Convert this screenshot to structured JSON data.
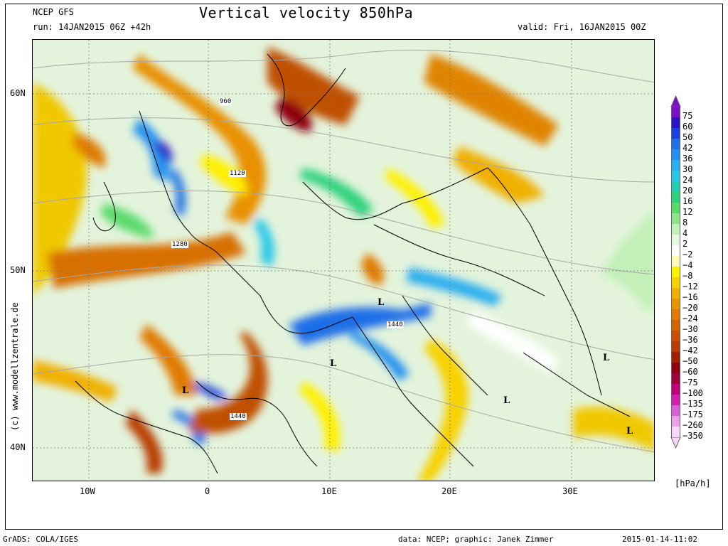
{
  "header": {
    "model": "NCEP GFS",
    "run": "run: 14JAN2015 06Z +42h",
    "title": "Vertical velocity 850hPa",
    "valid": "valid: Fri, 16JAN2015 00Z"
  },
  "axes": {
    "lat_labels": [
      "60N",
      "50N",
      "40N"
    ],
    "lon_labels": [
      "10W",
      "0",
      "10E",
      "20E",
      "30E"
    ]
  },
  "credit": "(c) www.modellzentrale.de",
  "footer": {
    "left": "GrADS: COLA/IGES",
    "center": "data: NCEP; graphic: Janek Zimmer",
    "right": "2015-01-14-11:02"
  },
  "legend": {
    "unit": "[hPa/h]",
    "items": [
      {
        "label": "75",
        "color": "#7a10c8"
      },
      {
        "label": "60",
        "color": "#2a14c8"
      },
      {
        "label": "50",
        "color": "#1c40e0"
      },
      {
        "label": "42",
        "color": "#1e6ee8"
      },
      {
        "label": "36",
        "color": "#2490f0"
      },
      {
        "label": "30",
        "color": "#2aaef0"
      },
      {
        "label": "24",
        "color": "#28c8e8"
      },
      {
        "label": "20",
        "color": "#24d0b4"
      },
      {
        "label": "16",
        "color": "#2ed27c"
      },
      {
        "label": "12",
        "color": "#5ada6a"
      },
      {
        "label": "8",
        "color": "#8ee48a"
      },
      {
        "label": "4",
        "color": "#c2f0b8"
      },
      {
        "label": "2",
        "color": "#e8f8e4"
      },
      {
        "label": "−2",
        "color": "#ffffff"
      },
      {
        "label": "−4",
        "color": "#fffcb8"
      },
      {
        "label": "−8",
        "color": "#fff000"
      },
      {
        "label": "−12",
        "color": "#f8d200"
      },
      {
        "label": "−16",
        "color": "#f0b000"
      },
      {
        "label": "−20",
        "color": "#e89400"
      },
      {
        "label": "−24",
        "color": "#e07a00"
      },
      {
        "label": "−30",
        "color": "#d46400"
      },
      {
        "label": "−36",
        "color": "#c85000"
      },
      {
        "label": "−42",
        "color": "#b83c00"
      },
      {
        "label": "−50",
        "color": "#a02000"
      },
      {
        "label": "−60",
        "color": "#900010"
      },
      {
        "label": "−75",
        "color": "#a0003c"
      },
      {
        "label": "−100",
        "color": "#c0007a"
      },
      {
        "label": "−135",
        "color": "#d020b0"
      },
      {
        "label": "−175",
        "color": "#d860d8"
      },
      {
        "label": "−260",
        "color": "#e8a0e8"
      },
      {
        "label": "−350",
        "color": "#f8d8f8"
      }
    ]
  },
  "map_labels": {
    "lows": [
      "L",
      "L",
      "L",
      "L",
      "L",
      "L"
    ],
    "contours": [
      "960",
      "1120",
      "1280",
      "1440",
      "1440"
    ]
  }
}
